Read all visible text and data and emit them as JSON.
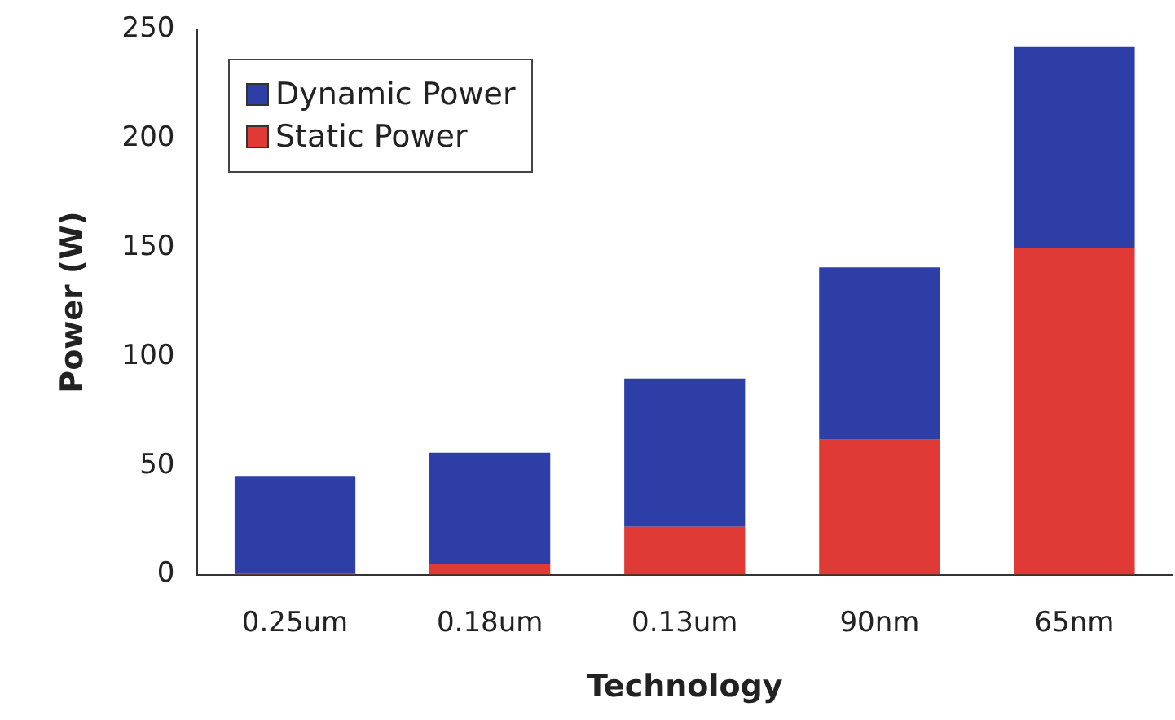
{
  "chart_data": {
    "type": "bar",
    "stacked": true,
    "xlabel": "Technology",
    "ylabel": "Power (W)",
    "categories": [
      "0.25um",
      "0.18um",
      "0.13um",
      "90nm",
      "65nm"
    ],
    "series": [
      {
        "name": "Static Power",
        "color": "#e03a36",
        "values": [
          1,
          5,
          22,
          62,
          150
        ]
      },
      {
        "name": "Dynamic Power",
        "color": "#2d3fa6",
        "values": [
          44,
          51,
          68,
          79,
          92
        ]
      }
    ],
    "ylim": [
      0,
      250
    ],
    "yticks": [
      0,
      50,
      100,
      150,
      200,
      250
    ],
    "grid": false,
    "legend": "top left"
  }
}
